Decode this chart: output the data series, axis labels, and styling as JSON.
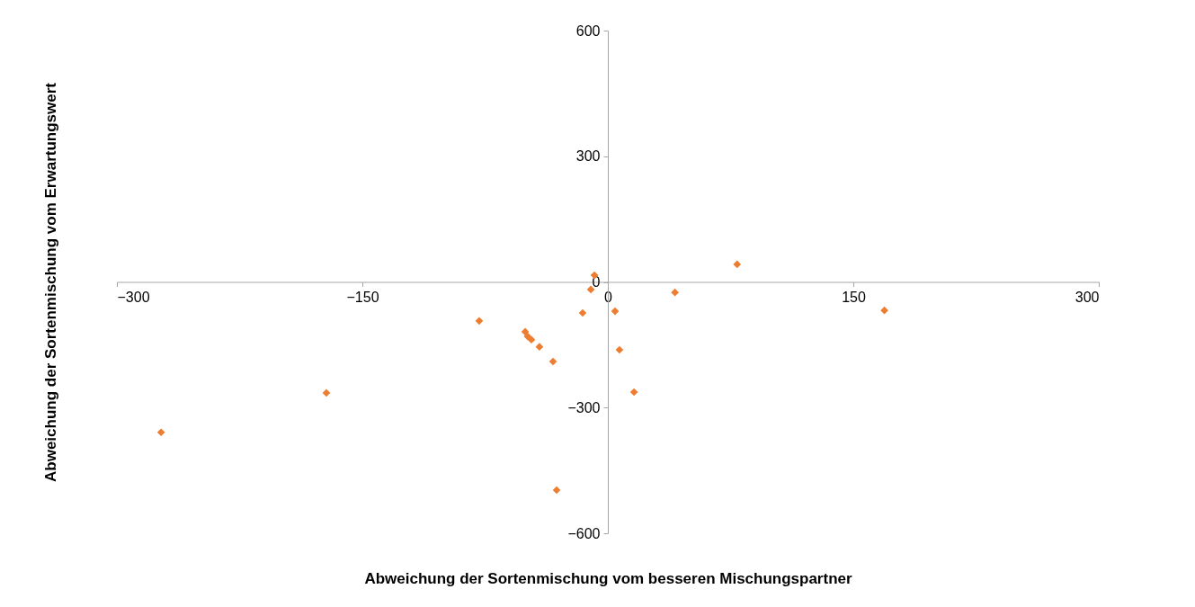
{
  "chart_data": {
    "type": "scatter",
    "xlabel": "Abweichung der Sortenmischung vom besseren Mischungspartner",
    "ylabel": "Abweichung der Sortenmischung vom Erwartungswert",
    "x": [
      -273,
      -172,
      -78.6,
      -50.5,
      -49,
      -46.7,
      -41.8,
      -33.5,
      -31.3,
      -15.4,
      -10.4,
      -8.2,
      4.4,
      7.1,
      16,
      41,
      79,
      169
    ],
    "series": [
      {
        "color": "#ed7d31",
        "values": [
          -359,
          -265,
          -93,
          -119,
          -130,
          -138,
          -155,
          -190,
          -497,
          -74,
          -18,
          16,
          -70,
          -162,
          -263,
          -25,
          42,
          -68
        ]
      }
    ],
    "xlim": [
      -300,
      300
    ],
    "xticks": [
      -300,
      -150,
      0,
      150,
      300
    ],
    "ylim": [
      -600,
      600
    ],
    "yticks": [
      -600,
      -300,
      0,
      300,
      600
    ],
    "marker": "diamond",
    "grid": false
  }
}
